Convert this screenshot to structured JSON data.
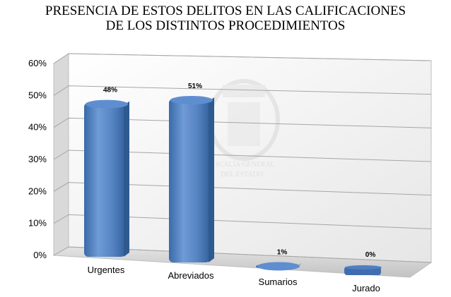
{
  "chart_data": {
    "type": "bar",
    "title_lines": [
      "PRESENCIA DE ESTOS DELITOS EN LAS CALIFICACIONES",
      "DE LOS DISTINTOS PROCEDIMIENTOS"
    ],
    "categories": [
      "Urgentes",
      "Abreviados",
      "Sumarios",
      "Jurado"
    ],
    "values": [
      48,
      51,
      1,
      0
    ],
    "data_labels": [
      "48%",
      "51%",
      "1%",
      "0%"
    ],
    "ylim": [
      0,
      60
    ],
    "yticks": [
      "0%",
      "10%",
      "20%",
      "30%",
      "40%",
      "50%",
      "60%"
    ],
    "xlabel": "",
    "ylabel": "",
    "grid": true,
    "legend": "none",
    "style": "3d-cylinder",
    "bar_color": "#4f81bd"
  },
  "watermark": {
    "lines": [
      "FISCALÍA GENERAL",
      "DEL ESTADO"
    ]
  }
}
